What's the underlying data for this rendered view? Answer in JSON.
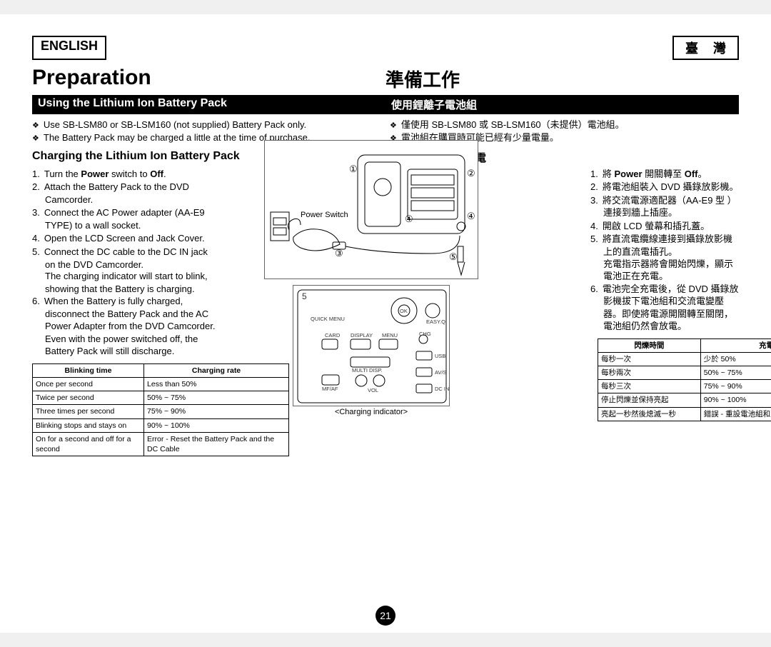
{
  "page_number": "21",
  "lang_en_label": "ENGLISH",
  "lang_tw_label": "臺 灣",
  "title_en": "Preparation",
  "title_zh": "準備工作",
  "section_bar_en": "Using the Lithium Ion Battery Pack",
  "section_bar_zh": "使用鋰離子電池組",
  "bullets_en": [
    "Use SB-LSM80 or SB-LSM160 (not supplied) Battery Pack only.",
    "The Battery Pack may be charged a little at the time of purchase."
  ],
  "bullets_zh": [
    "僅使用 SB-LSM80 或 SB-LSM160（未提供）電池組。",
    "電池組在購買時可能已經有少量電量。"
  ],
  "subhead_en": "Charging the Lithium Ion Battery Pack",
  "subhead_zh": "為鋰離子電池組充電",
  "steps_en": [
    {
      "text": "Turn the <b>Power</b> switch to <b>Off</b>."
    },
    {
      "text": "Attach the Battery Pack to the DVD Camcorder."
    },
    {
      "text": "Connect the AC Power adapter (AA-E9 TYPE) to a wall socket."
    },
    {
      "text": "Open the LCD Screen and Jack Cover."
    },
    {
      "text": "Connect the DC cable to the DC IN jack on the DVD Camcorder.",
      "sub": "The charging indicator will start to blink, showing that the Battery is charging."
    },
    {
      "text": "When the Battery is fully charged, disconnect the Battery Pack and the AC Power Adapter from the DVD Camcorder. Even with the power switched off, the Battery Pack will still discharge."
    }
  ],
  "steps_zh": [
    {
      "text": "將 <b>Power</b> 開關轉至 <b>Off</b>。"
    },
    {
      "text": "將電池組裝入 DVD 攝錄放影機。"
    },
    {
      "text": "將交流電源適配器（AA-E9 型 ）連接到牆上插座。"
    },
    {
      "text": "開啟 LCD 螢幕和插孔蓋。"
    },
    {
      "text": "將直流電纜線連接到攝錄放影機上的直流電插孔。",
      "sub": "充電指示器將會開始閃爍，顯示電池正在充電。"
    },
    {
      "text": "電池完全充電後，從 DVD 攝錄放影機拔下電池組和交流電變壓器。即使將電源開關轉至關閉，電池組仍然會放電。"
    }
  ],
  "table_en_headers": [
    "Blinking time",
    "Charging rate"
  ],
  "table_en_rows": [
    [
      "Once per second",
      "Less than 50%"
    ],
    [
      "Twice per second",
      "50% ~ 75%"
    ],
    [
      "Three times per second",
      "75% ~ 90%"
    ],
    [
      "Blinking stops and stays on",
      "90% ~ 100%"
    ],
    [
      "On for a second and off for a second",
      "Error - Reset the Battery Pack and the DC Cable"
    ]
  ],
  "table_zh_headers": [
    "閃爍時間",
    "充電率"
  ],
  "table_zh_rows": [
    [
      "每秒一次",
      "少於 50%"
    ],
    [
      "每秒兩次",
      "50% ~ 75%"
    ],
    [
      "每秒三次",
      "75% ~ 90%"
    ],
    [
      "停止閃爍並保持亮起",
      "90% ~ 100%"
    ],
    [
      "亮起一秒然後熄滅一秒",
      "錯誤 - 重設電池組和直流電纜線"
    ]
  ],
  "diagram": {
    "callouts": [
      "①",
      "②",
      "③",
      "④",
      "④",
      "⑤"
    ],
    "power_switch_label": "Power Switch",
    "panel_five": "5",
    "panel_labels": [
      "QUICK MENU",
      "CARD",
      "DISPLAY",
      "MENU",
      "MULTI DISP.",
      "MF/AF",
      "CHG",
      "USB",
      "AV/S",
      "DC IN",
      "OK",
      "EASY.Q",
      "VOL"
    ],
    "panel_caption": "<Charging indicator>"
  },
  "colors": {
    "black": "#000000",
    "white": "#ffffff",
    "border": "#666666"
  }
}
